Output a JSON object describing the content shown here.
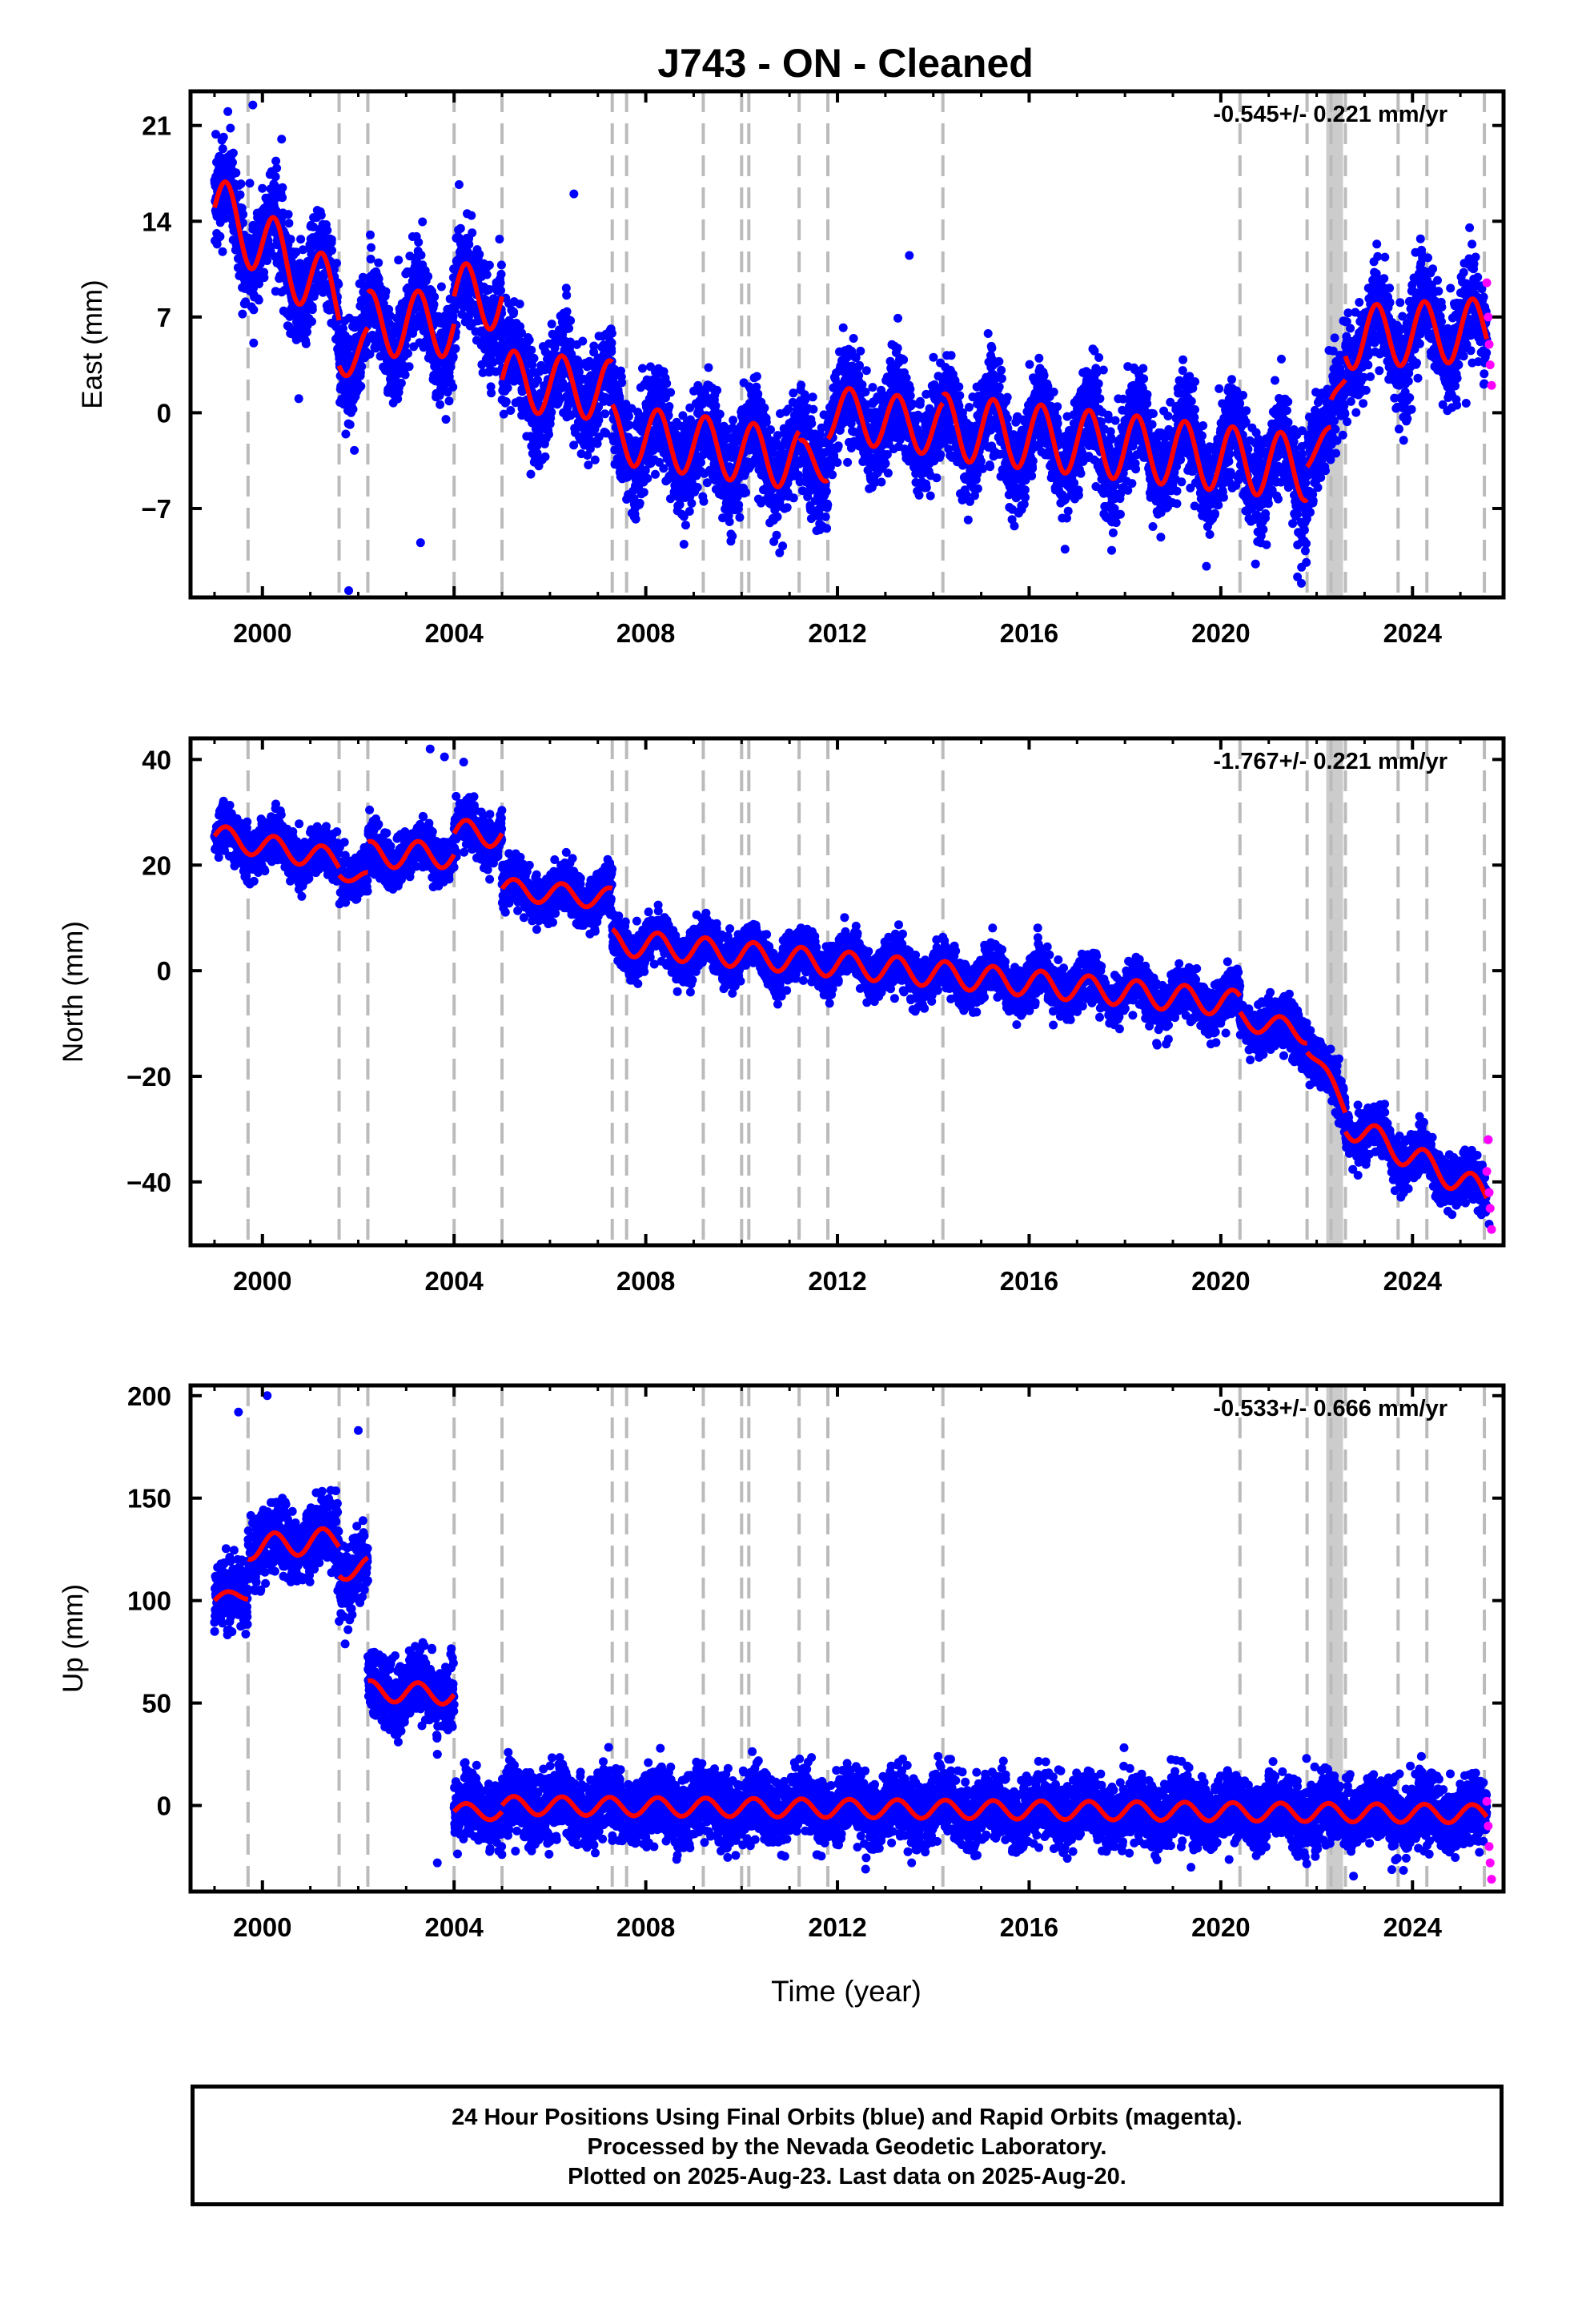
{
  "chart_data": {
    "type": "scatter",
    "title": "J743  - ON - Cleaned",
    "xlabel": "Time (year)",
    "x_range": [
      1998.5,
      2025.9
    ],
    "x_ticks": [
      2000,
      2004,
      2008,
      2012,
      2016,
      2020,
      2024
    ],
    "grid": false,
    "equipment_change_lines": [
      1999.7,
      2001.6,
      2002.2,
      2004.0,
      2005.0,
      2007.3,
      2007.6,
      2009.2,
      2010.0,
      2010.15,
      2011.2,
      2011.8,
      2014.2,
      2020.4,
      2021.8,
      2022.3,
      2022.6,
      2023.7,
      2024.3,
      2025.5
    ],
    "gap_band": [
      2022.2,
      2022.55
    ],
    "series_colors": {
      "final": "#0000ff",
      "rapid": "#ff00ff",
      "model": "#ff0000"
    },
    "panels": [
      {
        "component": "east",
        "ylabel": "East (mm)",
        "ylim": [
          -13.5,
          23.5
        ],
        "y_ticks": [
          -7,
          0,
          7,
          14,
          21
        ],
        "rate": "-0.545+/- 0.221 mm/yr",
        "model": {
          "segments": [
            {
              "start": 1999.0,
              "end": 2001.6,
              "level0": 15.0,
              "rate": -2.6,
              "amp": 2.5
            },
            {
              "start": 2001.6,
              "end": 2002.2,
              "level0": 4.5,
              "rate": 0,
              "amp": 1.8
            },
            {
              "start": 2002.2,
              "end": 2004.0,
              "level0": 6.5,
              "rate": 0,
              "amp": 2.4
            },
            {
              "start": 2004.0,
              "end": 2005.0,
              "level0": 8.5,
              "rate": 0,
              "amp": 2.4
            },
            {
              "start": 2005.0,
              "end": 2007.3,
              "level0": 2.4,
              "rate": -0.35,
              "amp": 2.2
            },
            {
              "start": 2007.3,
              "end": 2011.2,
              "level0": -1.5,
              "rate": -0.5,
              "amp": 2.2
            },
            {
              "start": 2011.2,
              "end": 2011.8,
              "level0": -3.5,
              "rate": 0,
              "amp": 1.5
            },
            {
              "start": 2011.8,
              "end": 2014.2,
              "level0": 0.0,
              "rate": -0.5,
              "amp": 2.0
            },
            {
              "start": 2014.2,
              "end": 2021.8,
              "level0": -1.0,
              "rate": -0.4,
              "amp": 2.4
            },
            {
              "start": 2021.8,
              "end": 2022.3,
              "level0": -3.0,
              "rate": 2.0,
              "amp": 1.0
            },
            {
              "start": 2022.3,
              "end": 2022.6,
              "level0": 0.0,
              "rate": 10.0,
              "amp": 1.0
            },
            {
              "start": 2022.6,
              "end": 2025.55,
              "level0": 5.5,
              "rate": 0.2,
              "amp": 2.3
            }
          ]
        },
        "scatter": {
          "sigma": 1.8,
          "n_per_year": 300,
          "outliers": [
            [
              1999.8,
              22.5
            ],
            [
              2000.4,
              20.0
            ],
            [
              2006.5,
              16.0
            ],
            [
              2001.8,
              -13.0
            ],
            [
              2003.3,
              -9.5
            ],
            [
              2013.5,
              11.5
            ],
            [
              2021.6,
              -12.0
            ]
          ]
        },
        "rapid_points": [
          [
            2025.55,
            9.5
          ],
          [
            2025.58,
            7.0
          ],
          [
            2025.6,
            5.0
          ],
          [
            2025.62,
            3.5
          ],
          [
            2025.65,
            2.0
          ]
        ]
      },
      {
        "component": "north",
        "ylabel": "North (mm)",
        "ylim": [
          -52,
          44
        ],
        "y_ticks": [
          -40,
          -20,
          0,
          20,
          40
        ],
        "rate": "-1.767+/- 0.221 mm/yr",
        "model": {
          "segments": [
            {
              "start": 1999.0,
              "end": 2001.6,
              "level0": 25.5,
              "rate": -1.8,
              "amp": 2.2
            },
            {
              "start": 2001.6,
              "end": 2002.2,
              "level0": 19.0,
              "rate": -3.0,
              "amp": 1.5
            },
            {
              "start": 2002.2,
              "end": 2004.0,
              "level0": 22.0,
              "rate": 0,
              "amp": 2.5
            },
            {
              "start": 2004.0,
              "end": 2005.0,
              "level0": 26.0,
              "rate": 0,
              "amp": 2.5
            },
            {
              "start": 2005.0,
              "end": 2007.3,
              "level0": 15.5,
              "rate": -0.8,
              "amp": 2.0
            },
            {
              "start": 2007.3,
              "end": 2020.4,
              "level0": 5.5,
              "rate": -0.9,
              "amp": 2.5
            },
            {
              "start": 2020.4,
              "end": 2021.8,
              "level0": -9.0,
              "rate": -2.0,
              "amp": 2.0
            },
            {
              "start": 2021.8,
              "end": 2022.6,
              "level0": -14.0,
              "rate": -15.0,
              "amp": 1.5
            },
            {
              "start": 2022.6,
              "end": 2025.55,
              "level0": -29.0,
              "rate": -4.5,
              "amp": 2.5
            }
          ]
        },
        "scatter": {
          "sigma": 2.2,
          "n_per_year": 300,
          "outliers": [
            [
              2003.5,
              42.0
            ],
            [
              2003.8,
              40.5
            ],
            [
              2004.2,
              39.5
            ],
            [
              2025.6,
              -48.0
            ],
            [
              2025.58,
              -32.0
            ]
          ]
        },
        "rapid_points": [
          [
            2025.55,
            -38.0
          ],
          [
            2025.58,
            -32.0
          ],
          [
            2025.6,
            -42.0
          ],
          [
            2025.62,
            -45.0
          ],
          [
            2025.65,
            -49.0
          ]
        ]
      },
      {
        "component": "up",
        "ylabel": "Up (mm)",
        "ylim": [
          -42,
          205
        ],
        "y_ticks": [
          0,
          50,
          100,
          150,
          200
        ],
        "rate": "-0.533+/- 0.666 mm/yr",
        "model": {
          "segments": [
            {
              "start": 1999.0,
              "end": 1999.7,
              "level0": 100.0,
              "rate": 5.0,
              "amp": 3.0
            },
            {
              "start": 1999.7,
              "end": 2001.6,
              "level0": 126.0,
              "rate": 2.0,
              "amp": 6.0
            },
            {
              "start": 2001.6,
              "end": 2002.2,
              "level0": 115.0,
              "rate": 2.0,
              "amp": 5.0
            },
            {
              "start": 2002.2,
              "end": 2004.0,
              "level0": 56.0,
              "rate": -1.0,
              "amp": 5.0
            },
            {
              "start": 2004.0,
              "end": 2005.0,
              "level0": -3.0,
              "rate": 0,
              "amp": 4.0
            },
            {
              "start": 2005.0,
              "end": 2025.55,
              "level0": 0.0,
              "rate": -0.2,
              "amp": 4.5
            }
          ]
        },
        "scatter": {
          "sigma": 8.0,
          "n_per_year": 300,
          "active": [
            [
              1999.0,
              2003.55
            ],
            [
              2003.6,
              2025.55
            ]
          ],
          "outliers": [
            [
              1999.5,
              192.0
            ],
            [
              2000.1,
              200.0
            ],
            [
              2002.0,
              183.0
            ],
            [
              2003.65,
              25.0
            ],
            [
              2003.65,
              -28.0
            ]
          ]
        },
        "rapid_points": [
          [
            2025.55,
            2.0
          ],
          [
            2025.58,
            -10.0
          ],
          [
            2025.6,
            -20.0
          ],
          [
            2025.62,
            -28.0
          ],
          [
            2025.65,
            -36.0
          ]
        ]
      }
    ]
  },
  "footer": {
    "line1": "24 Hour Positions Using Final Orbits (blue) and Rapid Orbits (magenta).",
    "line2": "Processed by the Nevada Geodetic Laboratory.",
    "line3": "Plotted on 2025-Aug-23. Last data on 2025-Aug-20."
  }
}
